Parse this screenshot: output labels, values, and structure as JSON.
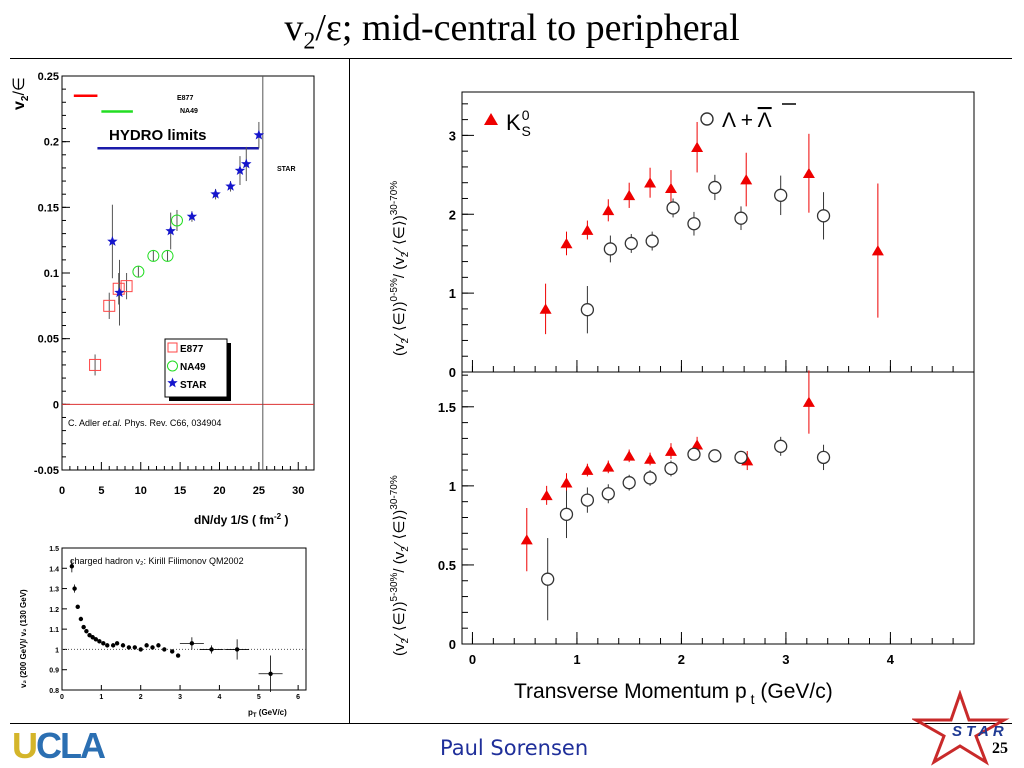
{
  "slide": {
    "title_main": "v",
    "title_sub": "2",
    "title_rest": "/ε; mid-central to peripheral",
    "footer_name": "Paul Sorensen",
    "page_number": "25",
    "logo_left": {
      "u": "U",
      "cla": "CLA"
    },
    "logo_right": "STAR"
  },
  "chart_data": [
    {
      "type": "scatter",
      "id": "v2-eps-vs-density",
      "ylabel_main": "v",
      "ylabel_sub": "2",
      "ylabel_rest": "/∈",
      "xlabel": "dN/dy 1/S ( fm",
      "xlabel_sup": "-2",
      "xlabel_end": " )",
      "xlim": [
        0,
        32
      ],
      "ylim": [
        -0.05,
        0.25
      ],
      "xticks": [
        0,
        5,
        10,
        15,
        20,
        25,
        30
      ],
      "yticks": [
        -0.05,
        0,
        0.05,
        0.1,
        0.15,
        0.2,
        0.25
      ],
      "ytick_labels": [
        "-0.05",
        "0",
        "0.05",
        "0.1",
        "0.15",
        "0.2",
        "0.25"
      ],
      "hydro_label": "HYDRO  limits",
      "hydro_limits": [
        {
          "name": "E877",
          "color": "#ff0000",
          "x": [
            1.5,
            4.5
          ],
          "y": 0.235
        },
        {
          "name": "NA49",
          "color": "#22dd22",
          "x": [
            5.0,
            9.0
          ],
          "y": 0.223
        },
        {
          "name": "STAR",
          "color": "#1a1aaa",
          "x": [
            4.5,
            25.0
          ],
          "y": 0.195
        }
      ],
      "vertical_line_x": 25.5,
      "reference": "C. Adler et.al. Phys. Rev. C66, 034904",
      "reference_parts": [
        "C. Adler ",
        "et.al.",
        " Phys. Rev. C66, 034904"
      ],
      "legend": [
        "E877",
        "NA49",
        "STAR"
      ],
      "series": [
        {
          "name": "E877",
          "color": "#ff4444",
          "marker": "square",
          "points": [
            [
              4.2,
              0.03,
              0.008
            ],
            [
              6.0,
              0.075,
              0.01
            ],
            [
              7.2,
              0.088,
              0.012
            ],
            [
              8.2,
              0.09,
              0.01
            ]
          ]
        },
        {
          "name": "NA49",
          "color": "#22dd22",
          "marker": "circle",
          "points": [
            [
              9.7,
              0.101,
              0.004
            ],
            [
              11.6,
              0.113,
              0.004
            ],
            [
              13.4,
              0.113,
              0.004
            ],
            [
              14.6,
              0.14,
              0.008
            ]
          ]
        },
        {
          "name": "STAR",
          "color": "#1515cc",
          "marker": "star",
          "points": [
            [
              6.4,
              0.124,
              0.028
            ],
            [
              7.3,
              0.085,
              0.025
            ],
            [
              13.8,
              0.132,
              0.014
            ],
            [
              16.5,
              0.143,
              0.004
            ],
            [
              19.5,
              0.16,
              0.004
            ],
            [
              21.4,
              0.166,
              0.004
            ],
            [
              22.6,
              0.178,
              0.011
            ],
            [
              23.4,
              0.183,
              0.013
            ],
            [
              25.0,
              0.205,
              0.01
            ]
          ]
        }
      ]
    },
    {
      "type": "scatter",
      "id": "v2-ratio-energy",
      "ylabel": "v₂ (200 GeV)/ v₂ (130 GeV)",
      "xlabel": "p",
      "xlabel_sub": "T",
      "xlabel_end": " (GeV/c)",
      "xlim": [
        0,
        6.2
      ],
      "ylim": [
        0.8,
        1.5
      ],
      "xticks": [
        0,
        1,
        2,
        3,
        4,
        5,
        6
      ],
      "yticks": [
        0.8,
        0.9,
        1.0,
        1.1,
        1.2,
        1.3,
        1.4,
        1.5
      ],
      "ytick_labels": [
        "0.8",
        "0.9",
        "1",
        "1.1",
        "1.2",
        "1.3",
        "1.4",
        "1.5"
      ],
      "annotation": "charged hadron v₂: Kirill Filimonov QM2002",
      "dotted_reference_y": 1.0,
      "series": [
        {
          "name": "",
          "color": "#000000",
          "marker": "dot",
          "points": [
            [
              0.25,
              1.41,
              0.03
            ],
            [
              0.32,
              1.3,
              0.02
            ],
            [
              0.4,
              1.21,
              0.01
            ],
            [
              0.48,
              1.15,
              0.01
            ],
            [
              0.55,
              1.11,
              0.01
            ],
            [
              0.62,
              1.09,
              0.01
            ],
            [
              0.7,
              1.07,
              0.01
            ],
            [
              0.78,
              1.06,
              0.01
            ],
            [
              0.86,
              1.05,
              0.01
            ],
            [
              0.95,
              1.04,
              0.01
            ],
            [
              1.05,
              1.03,
              0.01
            ],
            [
              1.15,
              1.02,
              0.01
            ],
            [
              1.3,
              1.02,
              0.01
            ],
            [
              1.4,
              1.03,
              0.01
            ],
            [
              1.55,
              1.02,
              0.01
            ],
            [
              1.7,
              1.01,
              0.01
            ],
            [
              1.85,
              1.01,
              0.01
            ],
            [
              2.0,
              1.0,
              0.01
            ],
            [
              2.15,
              1.02,
              0.01
            ],
            [
              2.3,
              1.01,
              0.01
            ],
            [
              2.45,
              1.02,
              0.01
            ],
            [
              2.6,
              1.0,
              0.01
            ],
            [
              2.8,
              0.99,
              0.01
            ],
            [
              2.95,
              0.97,
              0.01
            ],
            [
              3.3,
              1.03,
              0.03
            ],
            [
              3.8,
              1.0,
              0.02
            ],
            [
              4.45,
              1.0,
              0.05
            ],
            [
              5.3,
              0.88,
              0.09
            ]
          ]
        }
      ]
    },
    {
      "type": "scatter",
      "id": "ratio-central-over-peripheral",
      "xlim": [
        -0.1,
        4.8
      ],
      "ylim": [
        0,
        3.55
      ],
      "xticks": [
        0,
        1,
        2,
        3,
        4
      ],
      "yticks": [
        0,
        1,
        2,
        3
      ],
      "ytick_labels": [
        "0",
        "1",
        "2",
        "3"
      ],
      "ylabel_parts": [
        "(v",
        "2",
        "⁄ ⟨∈⟩)",
        "0-5%",
        "/ (v",
        "2",
        "⁄ ⟨∈⟩)",
        "30-70%"
      ],
      "legend_k0s": {
        "main": "K",
        "sup": "0",
        "sub": "S"
      },
      "legend_lambda": "Λ + ",
      "legend_lambda_bar": "Λ",
      "series": [
        {
          "name": "K0S",
          "color": "#ee0000",
          "marker": "triangle",
          "points": [
            [
              0.7,
              0.8,
              0.32
            ],
            [
              0.9,
              1.63,
              0.15
            ],
            [
              1.1,
              1.8,
              0.12
            ],
            [
              1.3,
              2.05,
              0.14
            ],
            [
              1.5,
              2.24,
              0.16
            ],
            [
              1.7,
              2.4,
              0.19
            ],
            [
              1.9,
              2.33,
              0.23
            ],
            [
              2.15,
              2.85,
              0.32
            ],
            [
              2.62,
              2.44,
              0.34
            ],
            [
              3.22,
              2.52,
              0.5
            ],
            [
              3.88,
              1.54,
              0.85
            ]
          ]
        },
        {
          "name": "Lambda+AntiLambda",
          "color": "#333333",
          "marker": "open-circle",
          "points": [
            [
              1.1,
              0.79,
              0.3
            ],
            [
              1.32,
              1.56,
              0.17
            ],
            [
              1.52,
              1.63,
              0.12
            ],
            [
              1.72,
              1.66,
              0.12
            ],
            [
              1.92,
              2.08,
              0.12
            ],
            [
              2.12,
              1.88,
              0.15
            ],
            [
              2.32,
              2.34,
              0.16
            ],
            [
              2.57,
              1.95,
              0.15
            ],
            [
              2.95,
              2.24,
              0.25
            ],
            [
              3.36,
              1.98,
              0.3
            ]
          ]
        }
      ]
    },
    {
      "type": "scatter",
      "id": "ratio-midcentral-over-peripheral",
      "xlim": [
        -0.1,
        4.8
      ],
      "ylim": [
        0,
        1.72
      ],
      "xticks": [
        0,
        1,
        2,
        3,
        4
      ],
      "xtick_labels": [
        "0",
        "1",
        "2",
        "3",
        "4"
      ],
      "yticks": [
        0,
        0.5,
        1,
        1.5
      ],
      "ytick_labels": [
        "0",
        "0.5",
        "1",
        "1.5"
      ],
      "ylabel_parts": [
        "(v",
        "2",
        "⁄ ⟨∈⟩)",
        "5-30%",
        "/ (v",
        "2",
        "⁄ ⟨∈⟩)",
        "30-70%"
      ],
      "xlabel": "Transverse Momentum p",
      "xlabel_sub": "t",
      "xlabel_end": " (GeV/c)",
      "series": [
        {
          "name": "K0S",
          "color": "#ee0000",
          "marker": "triangle",
          "points": [
            [
              0.52,
              0.66,
              0.2
            ],
            [
              0.71,
              0.94,
              0.06
            ],
            [
              0.9,
              1.02,
              0.06
            ],
            [
              1.1,
              1.1,
              0.04
            ],
            [
              1.3,
              1.12,
              0.04
            ],
            [
              1.5,
              1.19,
              0.04
            ],
            [
              1.7,
              1.17,
              0.04
            ],
            [
              1.9,
              1.22,
              0.05
            ],
            [
              2.15,
              1.26,
              0.05
            ],
            [
              2.63,
              1.16,
              0.06
            ],
            [
              3.22,
              1.53,
              0.2
            ]
          ]
        },
        {
          "name": "Lambda+AntiLambda",
          "color": "#333333",
          "marker": "open-circle",
          "points": [
            [
              0.72,
              0.41,
              0.26
            ],
            [
              0.9,
              0.82,
              0.15
            ],
            [
              1.1,
              0.91,
              0.08
            ],
            [
              1.3,
              0.95,
              0.06
            ],
            [
              1.5,
              1.02,
              0.05
            ],
            [
              1.7,
              1.05,
              0.05
            ],
            [
              1.9,
              1.11,
              0.05
            ],
            [
              2.12,
              1.2,
              0.04
            ],
            [
              2.32,
              1.19,
              0.04
            ],
            [
              2.57,
              1.18,
              0.04
            ],
            [
              2.95,
              1.25,
              0.06
            ],
            [
              3.36,
              1.18,
              0.08
            ]
          ]
        }
      ]
    }
  ]
}
